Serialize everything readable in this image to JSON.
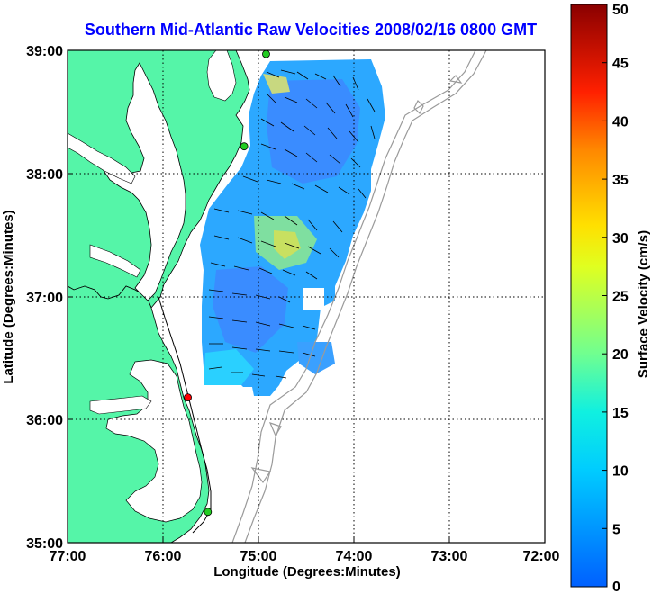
{
  "chart_data": {
    "type": "map",
    "title": "Southern Mid-Atlantic Raw Velocities 2008/02/16 0800 GMT",
    "xlabel": "Longitude (Degrees:Minutes)",
    "ylabel": "Latitude (Degrees:Minutes)",
    "x_ticks": [
      "77:00",
      "76:00",
      "75:00",
      "74:00",
      "73:00",
      "72:00"
    ],
    "y_ticks": [
      "39:00",
      "38:00",
      "37:00",
      "36:00",
      "35:00"
    ],
    "x_range_deg_west": [
      77,
      72
    ],
    "y_range_deg_north": [
      35,
      39
    ],
    "colorbar": {
      "label": "Surface Velocity (cm/s)",
      "min": 0,
      "max": 50,
      "ticks": [
        "0",
        "5",
        "10",
        "15",
        "20",
        "25",
        "30",
        "35",
        "40",
        "45",
        "50"
      ]
    },
    "stations": [
      {
        "lon": -74.92,
        "lat": 38.97,
        "status": "active",
        "color": "#22cc22"
      },
      {
        "lon": -75.15,
        "lat": 38.22,
        "status": "active",
        "color": "#22cc22"
      },
      {
        "lon": -75.74,
        "lat": 36.18,
        "status": "offline",
        "color": "#ff0000"
      },
      {
        "lon": -75.53,
        "lat": 35.25,
        "status": "active",
        "color": "#22cc22"
      }
    ],
    "colors": {
      "land": "#55f5a8",
      "title": "#0000ff",
      "bathymetry": "#9a9a9a"
    }
  }
}
